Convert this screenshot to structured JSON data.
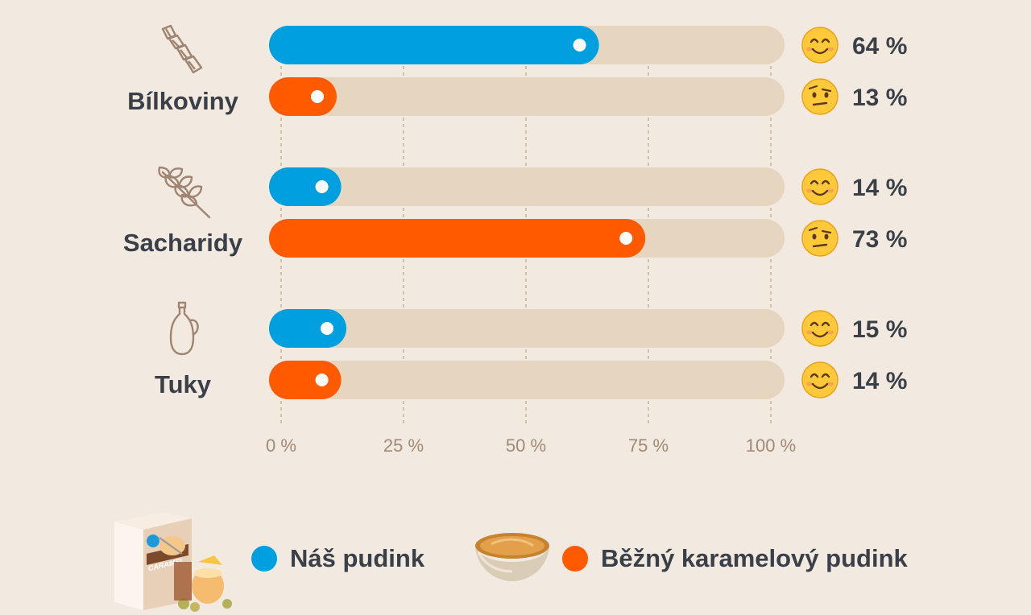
{
  "chart_data": {
    "type": "bar",
    "orientation": "horizontal",
    "categories": [
      "Bílkoviny",
      "Sacharidy",
      "Tuky"
    ],
    "series": [
      {
        "name": "Náš pudink",
        "color": "#009fdf",
        "values": [
          64,
          14,
          15
        ],
        "labels": [
          "64 %",
          "14 %",
          "15 %"
        ],
        "emoji": [
          "smiling-face",
          "smiling-face",
          "smiling-face"
        ]
      },
      {
        "name": "Běžný karamelový pudink",
        "color": "#ff5a00",
        "values": [
          13,
          73,
          14
        ],
        "labels": [
          "13 %",
          "73 %",
          "14 %"
        ],
        "emoji": [
          "raised-eyebrow-face",
          "raised-eyebrow-face",
          "smiling-face"
        ]
      }
    ],
    "xlim": [
      0,
      100
    ],
    "ticks": [
      0,
      25,
      50,
      75,
      100
    ],
    "tick_labels": [
      "0 %",
      "25 %",
      "50 %",
      "75 %",
      "100 %"
    ],
    "track_color": "#e6d6bf",
    "grid": true,
    "category_icons": [
      "pasta-icon",
      "wheat-icon",
      "oil-bottle-icon"
    ],
    "legend_position": "bottom"
  },
  "legend": {
    "items": [
      {
        "label": "Náš pudink",
        "color": "#009fdf",
        "image": "product-box-image"
      },
      {
        "label": "Běžný karamelový pudink",
        "color": "#ff5a00",
        "image": "caramel-pudding-bowl-image"
      }
    ]
  },
  "product_box": {
    "text": "CARAMEL"
  }
}
